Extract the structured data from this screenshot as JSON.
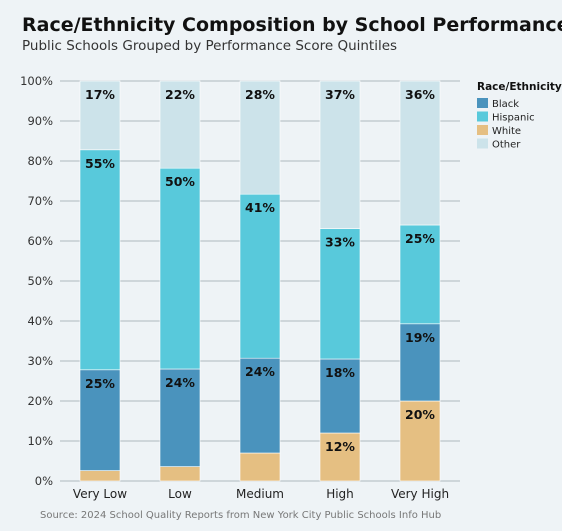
{
  "chart_data": {
    "type": "bar",
    "stacked": true,
    "title": "Race/Ethnicity Composition by School Performance",
    "subtitle": "Public Schools Grouped by Performance Score Quintiles",
    "source": "Source: 2024 School Quality Reports from New York City Public Schools Info Hub",
    "categories": [
      "Very Low",
      "Low",
      "Medium",
      "High",
      "Very High"
    ],
    "ylim": [
      0,
      100
    ],
    "yticks": [
      "0%",
      "10%",
      "20%",
      "30%",
      "40%",
      "50%",
      "60%",
      "70%",
      "80%",
      "90%",
      "100%"
    ],
    "legend": {
      "title": "Race/Ethnicity",
      "placement": "right"
    },
    "grid": true,
    "series": [
      {
        "name": "White",
        "color": "#e5bf82",
        "values": [
          2.6,
          3.6,
          7.0,
          12.0,
          20.0
        ],
        "labels": [
          "",
          "",
          "",
          "12%",
          "20%"
        ]
      },
      {
        "name": "Black",
        "color": "#4a93bd",
        "values": [
          25.2,
          24.4,
          23.7,
          18.5,
          19.3
        ],
        "labels": [
          "25%",
          "24%",
          "24%",
          "18%",
          "19%"
        ]
      },
      {
        "name": "Hispanic",
        "color": "#58c9db",
        "values": [
          55.0,
          50.2,
          41.0,
          32.6,
          24.7
        ],
        "labels": [
          "55%",
          "50%",
          "41%",
          "33%",
          "25%"
        ]
      },
      {
        "name": "Other",
        "color": "#cce3ea",
        "values": [
          17.2,
          21.8,
          28.3,
          36.9,
          36.0
        ],
        "labels": [
          "17%",
          "22%",
          "28%",
          "37%",
          "36%"
        ]
      }
    ],
    "legend_order": [
      "Black",
      "Hispanic",
      "White",
      "Other"
    ]
  }
}
